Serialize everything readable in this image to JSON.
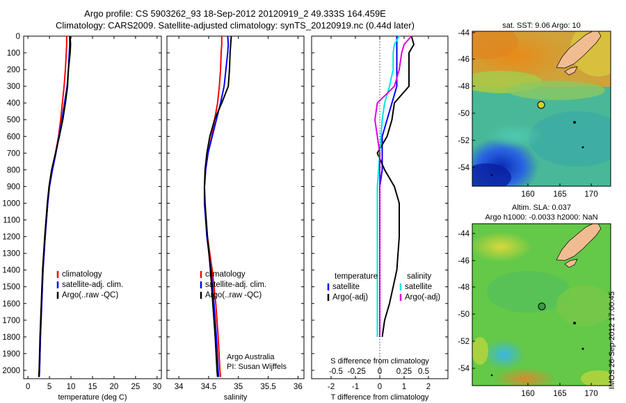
{
  "header": {
    "line1": "Argo profile: CS 5903262_93 18-Sep-2012 20120919_2 49.333S 164.459E",
    "line2": "Climatology: CARS2009. Satellite-adjusted climatology: synTS_20120919.nc (0.44d later)"
  },
  "colors": {
    "climatology": "#ff0000",
    "satellite": "#0000ff",
    "argo": "#000000",
    "salinity_satellite": "#00e5e5",
    "salinity_argo": "#e000e0"
  },
  "chart_data": [
    {
      "type": "line",
      "id": "temperature",
      "xlabel": "temperature (deg C)",
      "ylabel": "",
      "xlim": [
        -1,
        31
      ],
      "ylim": [
        2050,
        0
      ],
      "xticks": [
        0,
        5,
        10,
        15,
        20,
        25,
        30
      ],
      "yticks": [
        0,
        100,
        200,
        300,
        400,
        500,
        600,
        700,
        800,
        900,
        1000,
        1100,
        1200,
        1300,
        1400,
        1500,
        1600,
        1700,
        1800,
        1900,
        2000
      ],
      "legend": [
        "climatology",
        "satellite-adj. clim.",
        "Argo(..raw -QC)"
      ],
      "depth": [
        0,
        50,
        100,
        200,
        300,
        400,
        500,
        600,
        700,
        800,
        900,
        1000,
        1200,
        1400,
        1600,
        1800,
        2000,
        2040
      ],
      "series": [
        {
          "name": "climatology",
          "values": [
            9.0,
            9.0,
            8.9,
            8.7,
            8.4,
            8.0,
            7.6,
            7.1,
            6.4,
            5.6,
            5.0,
            4.6,
            4.0,
            3.5,
            3.2,
            2.9,
            2.7,
            2.6
          ]
        },
        {
          "name": "satellite-adj. clim.",
          "values": [
            9.7,
            9.7,
            9.6,
            9.4,
            9.1,
            8.5,
            7.9,
            7.2,
            6.5,
            5.7,
            5.0,
            4.6,
            4.0,
            3.5,
            3.2,
            2.9,
            2.7,
            2.6
          ]
        },
        {
          "name": "Argo(..raw -QC)",
          "values": [
            9.8,
            9.9,
            9.8,
            9.4,
            9.2,
            8.7,
            8.1,
            7.3,
            6.4,
            5.5,
            4.9,
            4.5,
            3.9,
            3.4,
            3.1,
            2.8,
            2.6,
            2.5
          ]
        }
      ]
    },
    {
      "type": "line",
      "id": "salinity",
      "xlabel": "salinity",
      "xlim": [
        33.8,
        36.1
      ],
      "ylim": [
        2050,
        0
      ],
      "xticks": [
        34,
        34.5,
        35,
        35.5,
        36
      ],
      "xtick_labels": [
        "34",
        "34.5",
        "35",
        "35.5",
        "36"
      ],
      "legend": [
        "climatology",
        "satellite-adj. clim.",
        "Argo(..raw -QC)"
      ],
      "annotation": [
        "Argo Australia",
        "PI: Susan Wijffels"
      ],
      "depth": [
        0,
        50,
        100,
        200,
        300,
        400,
        500,
        600,
        700,
        800,
        900,
        1000,
        1200,
        1400,
        1600,
        1800,
        2000,
        2040
      ],
      "series": [
        {
          "name": "climatology",
          "values": [
            34.72,
            34.72,
            34.71,
            34.7,
            34.68,
            34.65,
            34.6,
            34.55,
            34.49,
            34.45,
            34.43,
            34.43,
            34.48,
            34.56,
            34.62,
            34.66,
            34.69,
            34.7
          ]
        },
        {
          "name": "satellite-adj. clim.",
          "values": [
            34.82,
            34.83,
            34.82,
            34.79,
            34.76,
            34.7,
            34.63,
            34.56,
            34.49,
            34.45,
            34.43,
            34.43,
            34.47,
            34.54,
            34.59,
            34.63,
            34.66,
            34.67
          ]
        },
        {
          "name": "Argo(..raw -QC)",
          "values": [
            34.88,
            34.87,
            34.86,
            34.85,
            34.83,
            34.72,
            34.6,
            34.52,
            34.47,
            34.44,
            34.43,
            34.44,
            34.48,
            34.53,
            34.57,
            34.61,
            34.64,
            34.65
          ]
        }
      ]
    },
    {
      "type": "line",
      "id": "difference",
      "xlabel": "T difference from climatology",
      "top_label": "S difference from climatology",
      "xlim": [
        -2.8,
        2.8
      ],
      "ylim": [
        2050,
        0
      ],
      "xticks": [
        -2,
        -1,
        0,
        1,
        2
      ],
      "top_ticks": [
        "-0.5",
        "-0.25",
        "0",
        "0.25",
        "0.5"
      ],
      "legend_titles": [
        "temperature",
        "salinity"
      ],
      "legend": [
        "satellite",
        "Argo(-adj)",
        "satellite",
        "Argo(-adj)"
      ],
      "depth": [
        0,
        50,
        100,
        200,
        300,
        400,
        500,
        600,
        700,
        800,
        900,
        1000,
        1200,
        1400,
        1600,
        1700,
        1800
      ],
      "series": [
        {
          "name": "temperature satellite",
          "values": [
            0.7,
            0.7,
            0.7,
            0.7,
            0.7,
            0.5,
            0.3,
            0.1,
            0.1,
            0.1,
            0.0,
            0.0,
            0.0,
            0.0,
            0.0,
            0.0,
            0.0
          ]
        },
        {
          "name": "temperature Argo(-adj)",
          "values": [
            1.3,
            1.4,
            1.2,
            1.2,
            1.2,
            0.6,
            0.5,
            0.3,
            -0.1,
            0.2,
            0.6,
            0.8,
            0.8,
            0.7,
            0.4,
            0.2,
            0.1
          ]
        },
        {
          "name": "salinity satellite",
          "values": [
            0.8,
            0.6,
            0.55,
            0.55,
            0.4,
            0.2,
            0.1,
            0.05,
            0.0,
            -0.05,
            -0.1,
            -0.1,
            -0.1,
            -0.1,
            -0.1,
            -0.1,
            -0.1
          ]
        },
        {
          "name": "salinity Argo(-adj)",
          "values": [
            1.3,
            1.0,
            0.9,
            0.8,
            0.6,
            -0.1,
            -0.2,
            -0.1,
            0.0,
            0.0,
            0.0,
            0.0,
            0.0,
            0.0,
            0.0,
            0.0,
            0.0
          ]
        }
      ]
    },
    {
      "type": "heatmap",
      "id": "sst_map",
      "title": "sat. SST: 9.06 Argo: 10",
      "xticks": [
        "160",
        "165",
        "170"
      ],
      "yticks": [
        "-44",
        "-46",
        "-48",
        "-50",
        "-52",
        "-54"
      ]
    },
    {
      "type": "heatmap",
      "id": "sla_map",
      "title_lines": [
        "Altim. SLA: 0.037",
        "Argo h1000: -0.0033 h2000: NaN"
      ],
      "xticks": [
        "160",
        "165",
        "170"
      ],
      "yticks": [
        "-44",
        "-46",
        "-48",
        "-50",
        "-52",
        "-54"
      ]
    }
  ],
  "stamp": "IMOS 26-Sep-2012 17:00:45"
}
